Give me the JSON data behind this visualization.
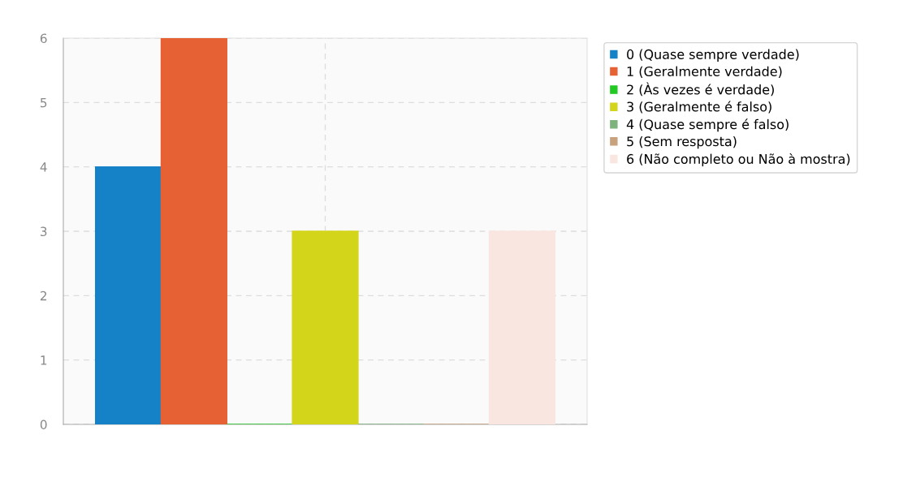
{
  "chart_data": {
    "type": "bar",
    "categories": [
      null
    ],
    "series": [
      {
        "name": "0 (Quase sempre verdade)",
        "color": "#1582c8",
        "values": [
          4
        ]
      },
      {
        "name": "1 (Geralmente verdade)",
        "color": "#e66133",
        "values": [
          6
        ]
      },
      {
        "name": "2 (Às vezes é verdade)",
        "color": "#22c922",
        "values": [
          0
        ]
      },
      {
        "name": "3 (Geralmente é falso)",
        "color": "#d3d51b",
        "values": [
          3
        ]
      },
      {
        "name": "4 (Quase sempre é falso)",
        "color": "#7db27d",
        "values": [
          0
        ]
      },
      {
        "name": "5 (Sem resposta)",
        "color": "#c8a27d",
        "values": [
          0
        ]
      },
      {
        "name": "6 (Não completo ou Não à mostra)",
        "color": "#fae6e0",
        "values": [
          3
        ]
      }
    ],
    "ylim": [
      0,
      6
    ],
    "yticks": [
      0,
      1,
      2,
      3,
      4,
      5,
      6
    ],
    "grid": true,
    "legend": "top right"
  }
}
